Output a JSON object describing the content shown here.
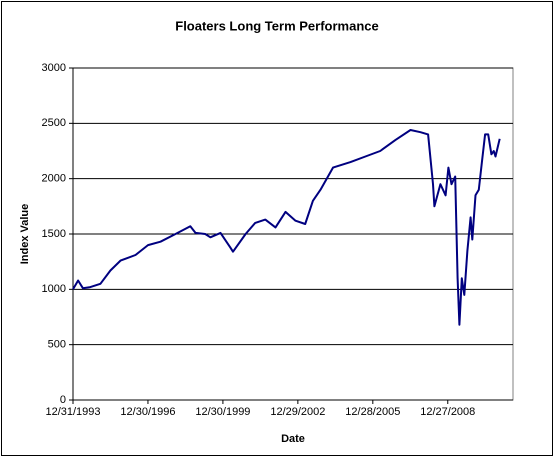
{
  "chart_data": {
    "type": "line",
    "title": "Floaters Long Term Performance",
    "x_label": "Date",
    "y_label": "Index Value",
    "x": [
      "1993-12-31",
      "1994-03-15",
      "1994-05-25",
      "1994-09-10",
      "1995-02-05",
      "1995-07-01",
      "1995-11-25",
      "1996-07-01",
      "1996-12-30",
      "1997-07-01",
      "1998-02-05",
      "1998-09-10",
      "1998-11-25",
      "1999-04-15",
      "1999-07-01",
      "1999-11-25",
      "2000-04-15",
      "2000-05-25",
      "2000-11-25",
      "2001-04-15",
      "2001-09-10",
      "2002-02-05",
      "2002-07-01",
      "2002-11-25",
      "2003-04-15",
      "2003-08-05",
      "2003-11-25",
      "2004-05-25",
      "2005-02-05",
      "2005-09-10",
      "2006-04-15",
      "2006-11-25",
      "2007-07-01",
      "2007-11-25",
      "2008-03-15",
      "2008-05-25",
      "2008-06-15",
      "2008-09-10",
      "2008-11-25",
      "2009-01-05",
      "2009-02-20",
      "2009-04-15",
      "2009-05-20",
      "2009-06-15",
      "2009-07-20",
      "2009-08-25",
      "2009-10-10",
      "2009-11-25",
      "2009-12-20",
      "2010-02-05",
      "2010-03-25",
      "2010-05-10",
      "2010-06-25",
      "2010-08-10",
      "2010-09-25",
      "2010-10-30",
      "2010-11-25",
      "2011-01-25"
    ],
    "series": [
      {
        "color": "#000080",
        "values": [
          1000,
          1080,
          1010,
          1020,
          1050,
          1170,
          1260,
          1310,
          1400,
          1430,
          1500,
          1570,
          1510,
          1500,
          1470,
          1510,
          1380,
          1340,
          1500,
          1600,
          1630,
          1560,
          1700,
          1620,
          1590,
          1800,
          1900,
          2100,
          2150,
          2200,
          2250,
          2350,
          2440,
          2420,
          2400,
          1950,
          1750,
          1950,
          1850,
          2100,
          1950,
          2020,
          1100,
          680,
          1100,
          950,
          1350,
          1650,
          1450,
          1850,
          1900,
          2150,
          2400,
          2400,
          2220,
          2250,
          2200,
          2360
        ]
      }
    ],
    "xlim": [
      "1993-12-31",
      "2011-08-07"
    ],
    "xticks": [
      {
        "value": "1993-12-31",
        "label": "12/31/1993"
      },
      {
        "value": "1996-12-30",
        "label": "12/30/1996"
      },
      {
        "value": "1999-12-30",
        "label": "12/30/1999"
      },
      {
        "value": "2002-12-29",
        "label": "12/29/2002"
      },
      {
        "value": "2005-12-28",
        "label": "12/28/2005"
      },
      {
        "value": "2008-12-27",
        "label": "12/27/2008"
      }
    ],
    "ylim": [
      0,
      3000
    ],
    "yticks": [
      0,
      500,
      1000,
      1500,
      2000,
      2500,
      3000
    ],
    "grid": true
  }
}
